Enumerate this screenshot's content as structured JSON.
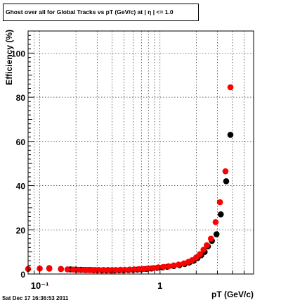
{
  "title": "Ghost over all for Global Tracks vs pT (GeV/c) at |  η | <= 1.0",
  "footer": "Sat Dec 17 16:36:53 2011",
  "chart_data": {
    "type": "scatter",
    "title": "Ghost over all for Global Tracks vs pT (GeV/c) at |  η | <= 1.0",
    "xlabel": "pT (GeV/c)",
    "ylabel": "Efficiency (%)",
    "x_scale": "log",
    "xlim": [
      0.08,
      6.0
    ],
    "ylim": [
      0,
      110
    ],
    "x_tick_labels": [
      "10⁻¹",
      "1"
    ],
    "y_ticks": [
      0,
      20,
      40,
      60,
      80,
      100
    ],
    "grid": true,
    "series": [
      {
        "color": "#000000",
        "points": [
          [
            0.12,
            2.6
          ],
          [
            0.15,
            2.3
          ],
          [
            0.18,
            2.1
          ],
          [
            0.2,
            2.0
          ],
          [
            0.22,
            1.9
          ],
          [
            0.24,
            1.8
          ],
          [
            0.26,
            1.8
          ],
          [
            0.28,
            1.7
          ],
          [
            0.3,
            1.7
          ],
          [
            0.33,
            1.6
          ],
          [
            0.36,
            1.6
          ],
          [
            0.39,
            1.6
          ],
          [
            0.42,
            1.6
          ],
          [
            0.46,
            1.7
          ],
          [
            0.5,
            1.7
          ],
          [
            0.55,
            1.8
          ],
          [
            0.6,
            1.9
          ],
          [
            0.65,
            2.0
          ],
          [
            0.7,
            2.1
          ],
          [
            0.77,
            2.3
          ],
          [
            0.85,
            2.5
          ],
          [
            0.95,
            2.8
          ],
          [
            1.05,
            3.0
          ],
          [
            1.15,
            3.3
          ],
          [
            1.3,
            3.6
          ],
          [
            1.45,
            4.0
          ],
          [
            1.6,
            4.5
          ],
          [
            1.75,
            5.2
          ],
          [
            1.9,
            6.0
          ],
          [
            2.05,
            7.2
          ],
          [
            2.2,
            8.5
          ],
          [
            2.35,
            10.0
          ],
          [
            2.5,
            12.5
          ],
          [
            2.7,
            15.0
          ],
          [
            2.95,
            18.0
          ],
          [
            3.2,
            27.0
          ],
          [
            3.55,
            42.0
          ],
          [
            3.85,
            63.0
          ]
        ]
      },
      {
        "color": "#ff0000",
        "points": [
          [
            0.08,
            2.3
          ],
          [
            0.1,
            2.5
          ],
          [
            0.12,
            2.4
          ],
          [
            0.15,
            2.2
          ],
          [
            0.17,
            2.1
          ],
          [
            0.19,
            2.0
          ],
          [
            0.21,
            1.9
          ],
          [
            0.23,
            1.9
          ],
          [
            0.25,
            1.8
          ],
          [
            0.27,
            1.8
          ],
          [
            0.29,
            1.8
          ],
          [
            0.31,
            1.8
          ],
          [
            0.34,
            1.8
          ],
          [
            0.37,
            1.8
          ],
          [
            0.4,
            1.8
          ],
          [
            0.43,
            1.8
          ],
          [
            0.47,
            1.9
          ],
          [
            0.51,
            1.9
          ],
          [
            0.56,
            2.0
          ],
          [
            0.61,
            2.1
          ],
          [
            0.67,
            2.2
          ],
          [
            0.73,
            2.3
          ],
          [
            0.8,
            2.5
          ],
          [
            0.88,
            2.7
          ],
          [
            0.97,
            3.0
          ],
          [
            1.07,
            3.2
          ],
          [
            1.18,
            3.5
          ],
          [
            1.3,
            3.9
          ],
          [
            1.43,
            4.3
          ],
          [
            1.58,
            4.8
          ],
          [
            1.72,
            5.5
          ],
          [
            1.85,
            6.3
          ],
          [
            2.0,
            7.5
          ],
          [
            2.15,
            9.0
          ],
          [
            2.3,
            11.0
          ],
          [
            2.45,
            13.0
          ],
          [
            2.65,
            16.0
          ],
          [
            2.9,
            23.5
          ],
          [
            3.15,
            32.5
          ],
          [
            3.5,
            46.5
          ],
          [
            3.85,
            84.5
          ]
        ]
      }
    ]
  }
}
